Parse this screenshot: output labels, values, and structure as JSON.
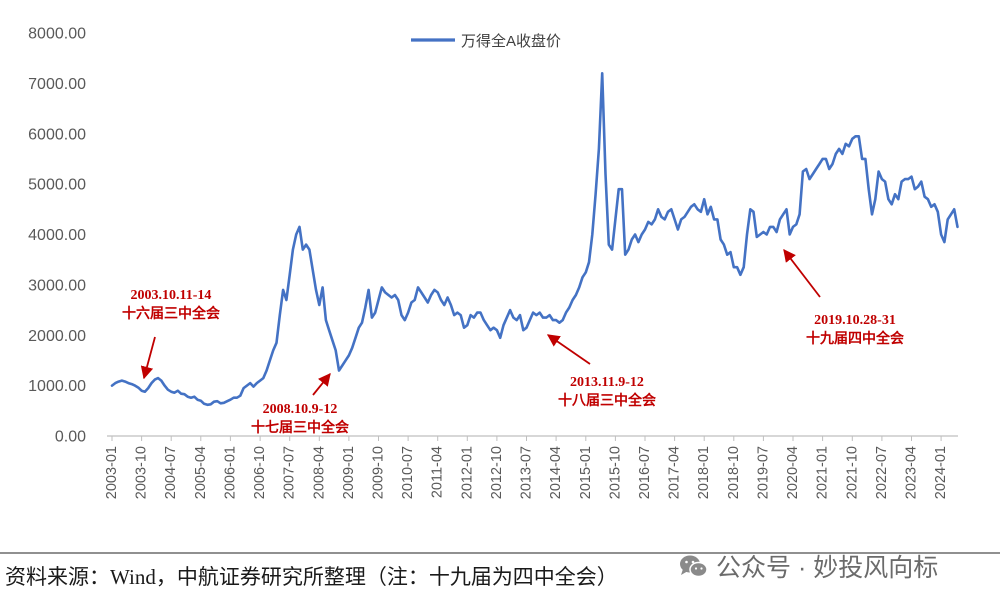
{
  "chart_data": {
    "type": "line",
    "grid": false,
    "legend": {
      "position": "top-center",
      "entries": [
        "万得全A收盘价"
      ]
    },
    "ylim": [
      0,
      8000
    ],
    "yticks": [
      "0.00",
      "1000.00",
      "2000.00",
      "3000.00",
      "4000.00",
      "5000.00",
      "6000.00",
      "7000.00",
      "8000.00"
    ],
    "xticks": [
      "2003-01",
      "2003-10",
      "2004-07",
      "2005-04",
      "2006-01",
      "2006-10",
      "2007-07",
      "2008-04",
      "2009-01",
      "2009-10",
      "2010-07",
      "2011-04",
      "2012-01",
      "2012-10",
      "2013-07",
      "2014-04",
      "2015-01",
      "2015-10",
      "2016-07",
      "2017-04",
      "2018-01",
      "2018-10",
      "2019-07",
      "2020-04",
      "2021-01",
      "2021-10",
      "2022-07",
      "2023-04",
      "2024-01"
    ],
    "x": [
      "2003-01",
      "2003-02",
      "2003-03",
      "2003-04",
      "2003-05",
      "2003-06",
      "2003-07",
      "2003-08",
      "2003-09",
      "2003-10",
      "2003-11",
      "2003-12",
      "2004-01",
      "2004-02",
      "2004-03",
      "2004-04",
      "2004-05",
      "2004-06",
      "2004-07",
      "2004-08",
      "2004-09",
      "2004-10",
      "2004-11",
      "2004-12",
      "2005-01",
      "2005-02",
      "2005-03",
      "2005-04",
      "2005-05",
      "2005-06",
      "2005-07",
      "2005-08",
      "2005-09",
      "2005-10",
      "2005-11",
      "2005-12",
      "2006-01",
      "2006-02",
      "2006-03",
      "2006-04",
      "2006-05",
      "2006-06",
      "2006-07",
      "2006-08",
      "2006-09",
      "2006-10",
      "2006-11",
      "2006-12",
      "2007-01",
      "2007-02",
      "2007-03",
      "2007-04",
      "2007-05",
      "2007-06",
      "2007-07",
      "2007-08",
      "2007-09",
      "2007-10",
      "2007-11",
      "2007-12",
      "2008-01",
      "2008-02",
      "2008-03",
      "2008-04",
      "2008-05",
      "2008-06",
      "2008-07",
      "2008-08",
      "2008-09",
      "2008-10",
      "2008-11",
      "2008-12",
      "2009-01",
      "2009-02",
      "2009-03",
      "2009-04",
      "2009-05",
      "2009-06",
      "2009-07",
      "2009-08",
      "2009-09",
      "2009-10",
      "2009-11",
      "2009-12",
      "2010-01",
      "2010-02",
      "2010-03",
      "2010-04",
      "2010-05",
      "2010-06",
      "2010-07",
      "2010-08",
      "2010-09",
      "2010-10",
      "2010-11",
      "2010-12",
      "2011-01",
      "2011-02",
      "2011-03",
      "2011-04",
      "2011-05",
      "2011-06",
      "2011-07",
      "2011-08",
      "2011-09",
      "2011-10",
      "2011-11",
      "2011-12",
      "2012-01",
      "2012-02",
      "2012-03",
      "2012-04",
      "2012-05",
      "2012-06",
      "2012-07",
      "2012-08",
      "2012-09",
      "2012-10",
      "2012-11",
      "2012-12",
      "2013-01",
      "2013-02",
      "2013-03",
      "2013-04",
      "2013-05",
      "2013-06",
      "2013-07",
      "2013-08",
      "2013-09",
      "2013-10",
      "2013-11",
      "2013-12",
      "2014-01",
      "2014-02",
      "2014-03",
      "2014-04",
      "2014-05",
      "2014-06",
      "2014-07",
      "2014-08",
      "2014-09",
      "2014-10",
      "2014-11",
      "2014-12",
      "2015-01",
      "2015-02",
      "2015-03",
      "2015-04",
      "2015-05",
      "2015-06",
      "2015-07",
      "2015-08",
      "2015-09",
      "2015-10",
      "2015-11",
      "2015-12",
      "2016-01",
      "2016-02",
      "2016-03",
      "2016-04",
      "2016-05",
      "2016-06",
      "2016-07",
      "2016-08",
      "2016-09",
      "2016-10",
      "2016-11",
      "2016-12",
      "2017-01",
      "2017-02",
      "2017-03",
      "2017-04",
      "2017-05",
      "2017-06",
      "2017-07",
      "2017-08",
      "2017-09",
      "2017-10",
      "2017-11",
      "2017-12",
      "2018-01",
      "2018-02",
      "2018-03",
      "2018-04",
      "2018-05",
      "2018-06",
      "2018-07",
      "2018-08",
      "2018-09",
      "2018-10",
      "2018-11",
      "2018-12",
      "2019-01",
      "2019-02",
      "2019-03",
      "2019-04",
      "2019-05",
      "2019-06",
      "2019-07",
      "2019-08",
      "2019-09",
      "2019-10",
      "2019-11",
      "2019-12",
      "2020-01",
      "2020-02",
      "2020-03",
      "2020-04",
      "2020-05",
      "2020-06",
      "2020-07",
      "2020-08",
      "2020-09",
      "2020-10",
      "2020-11",
      "2020-12",
      "2021-01",
      "2021-02",
      "2021-03",
      "2021-04",
      "2021-05",
      "2021-06",
      "2021-07",
      "2021-08",
      "2021-09",
      "2021-10",
      "2021-11",
      "2021-12",
      "2022-01",
      "2022-02",
      "2022-03",
      "2022-04",
      "2022-05",
      "2022-06",
      "2022-07",
      "2022-08",
      "2022-09",
      "2022-10",
      "2022-11",
      "2022-12",
      "2023-01",
      "2023-02",
      "2023-03",
      "2023-04",
      "2023-05",
      "2023-06",
      "2023-07",
      "2023-08",
      "2023-09",
      "2023-10",
      "2023-11",
      "2023-12",
      "2024-01",
      "2024-02",
      "2024-03",
      "2024-04",
      "2024-05",
      "2024-06"
    ],
    "series": [
      {
        "name": "万得全A收盘价",
        "color": "#4472C4",
        "values": [
          1000,
          1050,
          1080,
          1100,
          1080,
          1050,
          1030,
          1000,
          960,
          900,
          880,
          950,
          1050,
          1120,
          1150,
          1100,
          1000,
          920,
          880,
          860,
          900,
          840,
          830,
          780,
          760,
          780,
          720,
          700,
          640,
          620,
          630,
          680,
          690,
          650,
          660,
          690,
          720,
          760,
          760,
          800,
          950,
          1000,
          1050,
          980,
          1050,
          1100,
          1150,
          1300,
          1500,
          1700,
          1850,
          2400,
          2900,
          2700,
          3200,
          3700,
          4000,
          4150,
          3700,
          3800,
          3700,
          3300,
          2900,
          2600,
          2950,
          2300,
          2100,
          1900,
          1700,
          1300,
          1400,
          1500,
          1600,
          1750,
          1950,
          2150,
          2250,
          2550,
          2900,
          2350,
          2450,
          2700,
          2950,
          2850,
          2800,
          2750,
          2800,
          2700,
          2400,
          2300,
          2450,
          2650,
          2700,
          2950,
          2850,
          2750,
          2650,
          2800,
          2900,
          2850,
          2700,
          2600,
          2750,
          2600,
          2400,
          2450,
          2400,
          2150,
          2200,
          2400,
          2350,
          2450,
          2450,
          2300,
          2200,
          2100,
          2150,
          2100,
          1950,
          2200,
          2350,
          2500,
          2350,
          2300,
          2400,
          2100,
          2150,
          2300,
          2450,
          2400,
          2450,
          2350,
          2350,
          2400,
          2300,
          2300,
          2250,
          2300,
          2450,
          2550,
          2700,
          2800,
          2950,
          3150,
          3250,
          3450,
          4000,
          4800,
          5700,
          7200,
          5200,
          3800,
          3700,
          4300,
          4900,
          4900,
          3600,
          3700,
          3900,
          4000,
          3850,
          4000,
          4100,
          4250,
          4200,
          4300,
          4500,
          4350,
          4300,
          4450,
          4500,
          4300,
          4100,
          4300,
          4350,
          4450,
          4550,
          4600,
          4500,
          4450,
          4700,
          4400,
          4550,
          4300,
          4300,
          3900,
          3800,
          3600,
          3650,
          3350,
          3350,
          3200,
          3350,
          4000,
          4500,
          4450,
          3950,
          4000,
          4050,
          4000,
          4150,
          4150,
          4050,
          4300,
          4400,
          4500,
          4000,
          4150,
          4200,
          4400,
          5250,
          5300,
          5100,
          5200,
          5300,
          5400,
          5500,
          5500,
          5300,
          5400,
          5600,
          5700,
          5600,
          5800,
          5750,
          5900,
          5950,
          5950,
          5500,
          5500,
          4900,
          4400,
          4700,
          5250,
          5100,
          5050,
          4700,
          4600,
          4800,
          4700,
          5050,
          5100,
          5100,
          5150,
          4900,
          4950,
          5050,
          4750,
          4700,
          4550,
          4600,
          4450,
          4000,
          3850,
          4300,
          4400,
          4500,
          4150
        ]
      }
    ],
    "annotations": [
      {
        "date_label": "2003.10.11-14",
        "event": "十六届三中全会",
        "color": "#C00000"
      },
      {
        "date_label": "2008.10.9-12",
        "event": "十七届三中全会",
        "color": "#C00000"
      },
      {
        "date_label": "2013.11.9-12",
        "event": "十八届三中全会",
        "color": "#C00000"
      },
      {
        "date_label": "2019.10.28-31",
        "event": "十九届四中全会",
        "color": "#C00000"
      }
    ]
  },
  "footer": {
    "source": "资料来源：Wind，中航证券研究所整理（注：十九届为四中全会）",
    "watermark": "公众号 · 妙投风向标",
    "watermark_icon": "wechat-icon"
  }
}
